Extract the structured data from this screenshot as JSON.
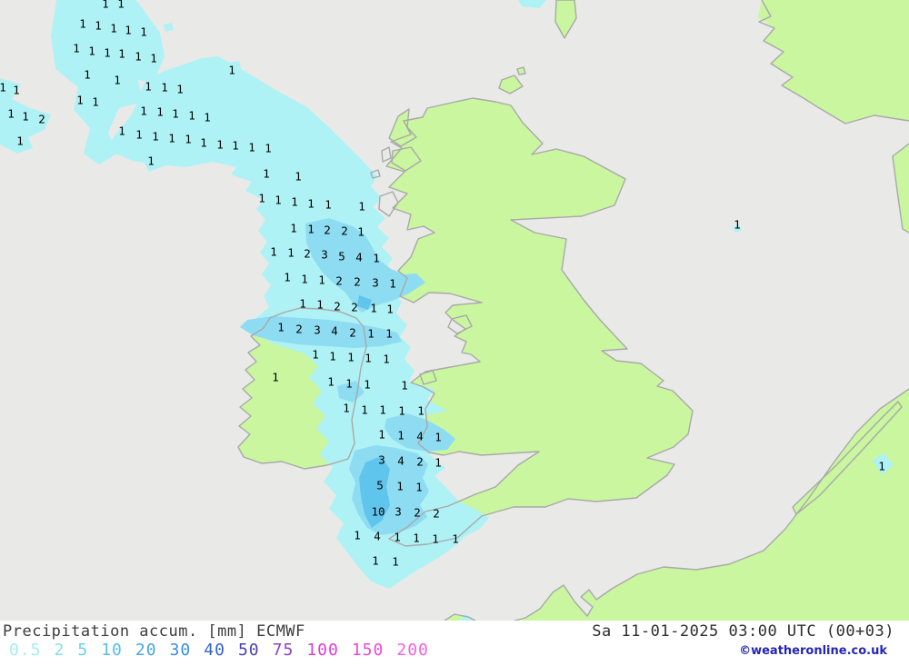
{
  "footer": {
    "product_label": "Precipitation accum. [mm] ECMWF",
    "datetime_label": "Sa 11-01-2025 03:00 UTC (00+03)",
    "credit": "©weatheronline.co.uk"
  },
  "legend": {
    "values": [
      {
        "label": "0.5",
        "color": "#a4edf2"
      },
      {
        "label": "2",
        "color": "#8adef0"
      },
      {
        "label": "5",
        "color": "#6dd2ee"
      },
      {
        "label": "10",
        "color": "#57bdea"
      },
      {
        "label": "20",
        "color": "#47a5e4"
      },
      {
        "label": "30",
        "color": "#3a8ede"
      },
      {
        "label": "40",
        "color": "#2f62cf"
      },
      {
        "label": "50",
        "color": "#4a3eb4"
      },
      {
        "label": "75",
        "color": "#8f41c6"
      },
      {
        "label": "100",
        "color": "#dd3fd0"
      },
      {
        "label": "150",
        "color": "#ef48d8"
      },
      {
        "label": "200",
        "color": "#f263e0"
      }
    ]
  },
  "map": {
    "colors": {
      "sea": "#e9eae7",
      "land": "#c9f69e",
      "coast": "#a9a9a9",
      "precip_light": "#aef2f5",
      "precip_medium": "#8edcf2",
      "precip_dark": "#60c5ec"
    },
    "labels": [
      [
        1,
        116,
        4
      ],
      [
        1,
        133,
        4
      ],
      [
        1,
        91,
        26
      ],
      [
        1,
        108,
        28
      ],
      [
        1,
        125,
        31
      ],
      [
        1,
        141,
        33
      ],
      [
        1,
        158,
        35
      ],
      [
        1,
        84,
        53
      ],
      [
        1,
        101,
        56
      ],
      [
        1,
        118,
        58
      ],
      [
        1,
        134,
        59
      ],
      [
        1,
        152,
        62
      ],
      [
        1,
        169,
        64
      ],
      [
        1,
        255,
        77
      ],
      [
        1,
        96,
        82
      ],
      [
        1,
        129,
        88
      ],
      [
        1,
        3,
        96
      ],
      [
        1,
        18,
        99
      ],
      [
        1,
        88,
        110
      ],
      [
        1,
        105,
        112
      ],
      [
        1,
        12,
        125
      ],
      [
        1,
        28,
        128
      ],
      [
        2,
        46,
        131
      ],
      [
        1,
        163,
        95
      ],
      [
        1,
        181,
        96
      ],
      [
        1,
        198,
        98
      ],
      [
        1,
        158,
        122
      ],
      [
        1,
        176,
        123
      ],
      [
        1,
        193,
        125
      ],
      [
        1,
        211,
        127
      ],
      [
        1,
        228,
        129
      ],
      [
        1,
        134,
        144
      ],
      [
        1,
        153,
        148
      ],
      [
        1,
        171,
        150
      ],
      [
        1,
        189,
        152
      ],
      [
        1,
        207,
        153
      ],
      [
        1,
        224,
        157
      ],
      [
        1,
        242,
        159
      ],
      [
        1,
        259,
        160
      ],
      [
        1,
        277,
        162
      ],
      [
        1,
        295,
        163
      ],
      [
        1,
        22,
        155
      ],
      [
        1,
        166,
        177
      ],
      [
        1,
        293,
        191
      ],
      [
        1,
        328,
        194
      ],
      [
        1,
        288,
        218
      ],
      [
        1,
        306,
        220
      ],
      [
        1,
        324,
        222
      ],
      [
        1,
        342,
        224
      ],
      [
        1,
        361,
        225
      ],
      [
        1,
        398,
        227
      ],
      [
        1,
        811,
        247
      ],
      [
        1,
        323,
        251
      ],
      [
        1,
        342,
        252
      ],
      [
        2,
        360,
        253
      ],
      [
        2,
        379,
        254
      ],
      [
        1,
        397,
        255
      ],
      [
        1,
        301,
        277
      ],
      [
        1,
        320,
        278
      ],
      [
        2,
        338,
        279
      ],
      [
        3,
        357,
        280
      ],
      [
        5,
        376,
        282
      ],
      [
        4,
        395,
        283
      ],
      [
        1,
        414,
        284
      ],
      [
        1,
        316,
        305
      ],
      [
        1,
        335,
        307
      ],
      [
        1,
        354,
        308
      ],
      [
        2,
        373,
        309
      ],
      [
        2,
        393,
        310
      ],
      [
        3,
        413,
        311
      ],
      [
        1,
        432,
        312
      ],
      [
        1,
        333,
        334
      ],
      [
        1,
        352,
        335
      ],
      [
        2,
        371,
        337
      ],
      [
        2,
        390,
        338
      ],
      [
        1,
        411,
        339
      ],
      [
        1,
        429,
        340
      ],
      [
        1,
        309,
        360
      ],
      [
        2,
        329,
        362
      ],
      [
        3,
        349,
        363
      ],
      [
        4,
        368,
        364
      ],
      [
        2,
        388,
        366
      ],
      [
        1,
        408,
        367
      ],
      [
        1,
        428,
        367
      ],
      [
        1,
        347,
        390
      ],
      [
        1,
        366,
        392
      ],
      [
        1,
        386,
        393
      ],
      [
        1,
        405,
        394
      ],
      [
        1,
        425,
        395
      ],
      [
        1,
        303,
        415
      ],
      [
        1,
        364,
        420
      ],
      [
        1,
        384,
        422
      ],
      [
        1,
        404,
        423
      ],
      [
        1,
        445,
        424
      ],
      [
        1,
        381,
        449
      ],
      [
        1,
        401,
        451
      ],
      [
        1,
        421,
        451
      ],
      [
        1,
        442,
        452
      ],
      [
        1,
        463,
        452
      ],
      [
        1,
        420,
        478
      ],
      [
        1,
        441,
        479
      ],
      [
        4,
        462,
        480
      ],
      [
        1,
        482,
        481
      ],
      [
        3,
        420,
        506
      ],
      [
        4,
        441,
        507
      ],
      [
        2,
        462,
        508
      ],
      [
        1,
        482,
        509
      ],
      [
        5,
        418,
        534
      ],
      [
        1,
        440,
        535
      ],
      [
        1,
        461,
        536
      ],
      [
        10,
        416,
        563
      ],
      [
        3,
        438,
        563
      ],
      [
        2,
        459,
        564
      ],
      [
        2,
        480,
        565
      ],
      [
        1,
        393,
        589
      ],
      [
        4,
        415,
        590
      ],
      [
        1,
        437,
        591
      ],
      [
        1,
        458,
        592
      ],
      [
        1,
        479,
        593
      ],
      [
        1,
        501,
        593
      ],
      [
        1,
        413,
        617
      ],
      [
        1,
        435,
        618
      ],
      [
        1,
        970,
        513
      ]
    ]
  }
}
